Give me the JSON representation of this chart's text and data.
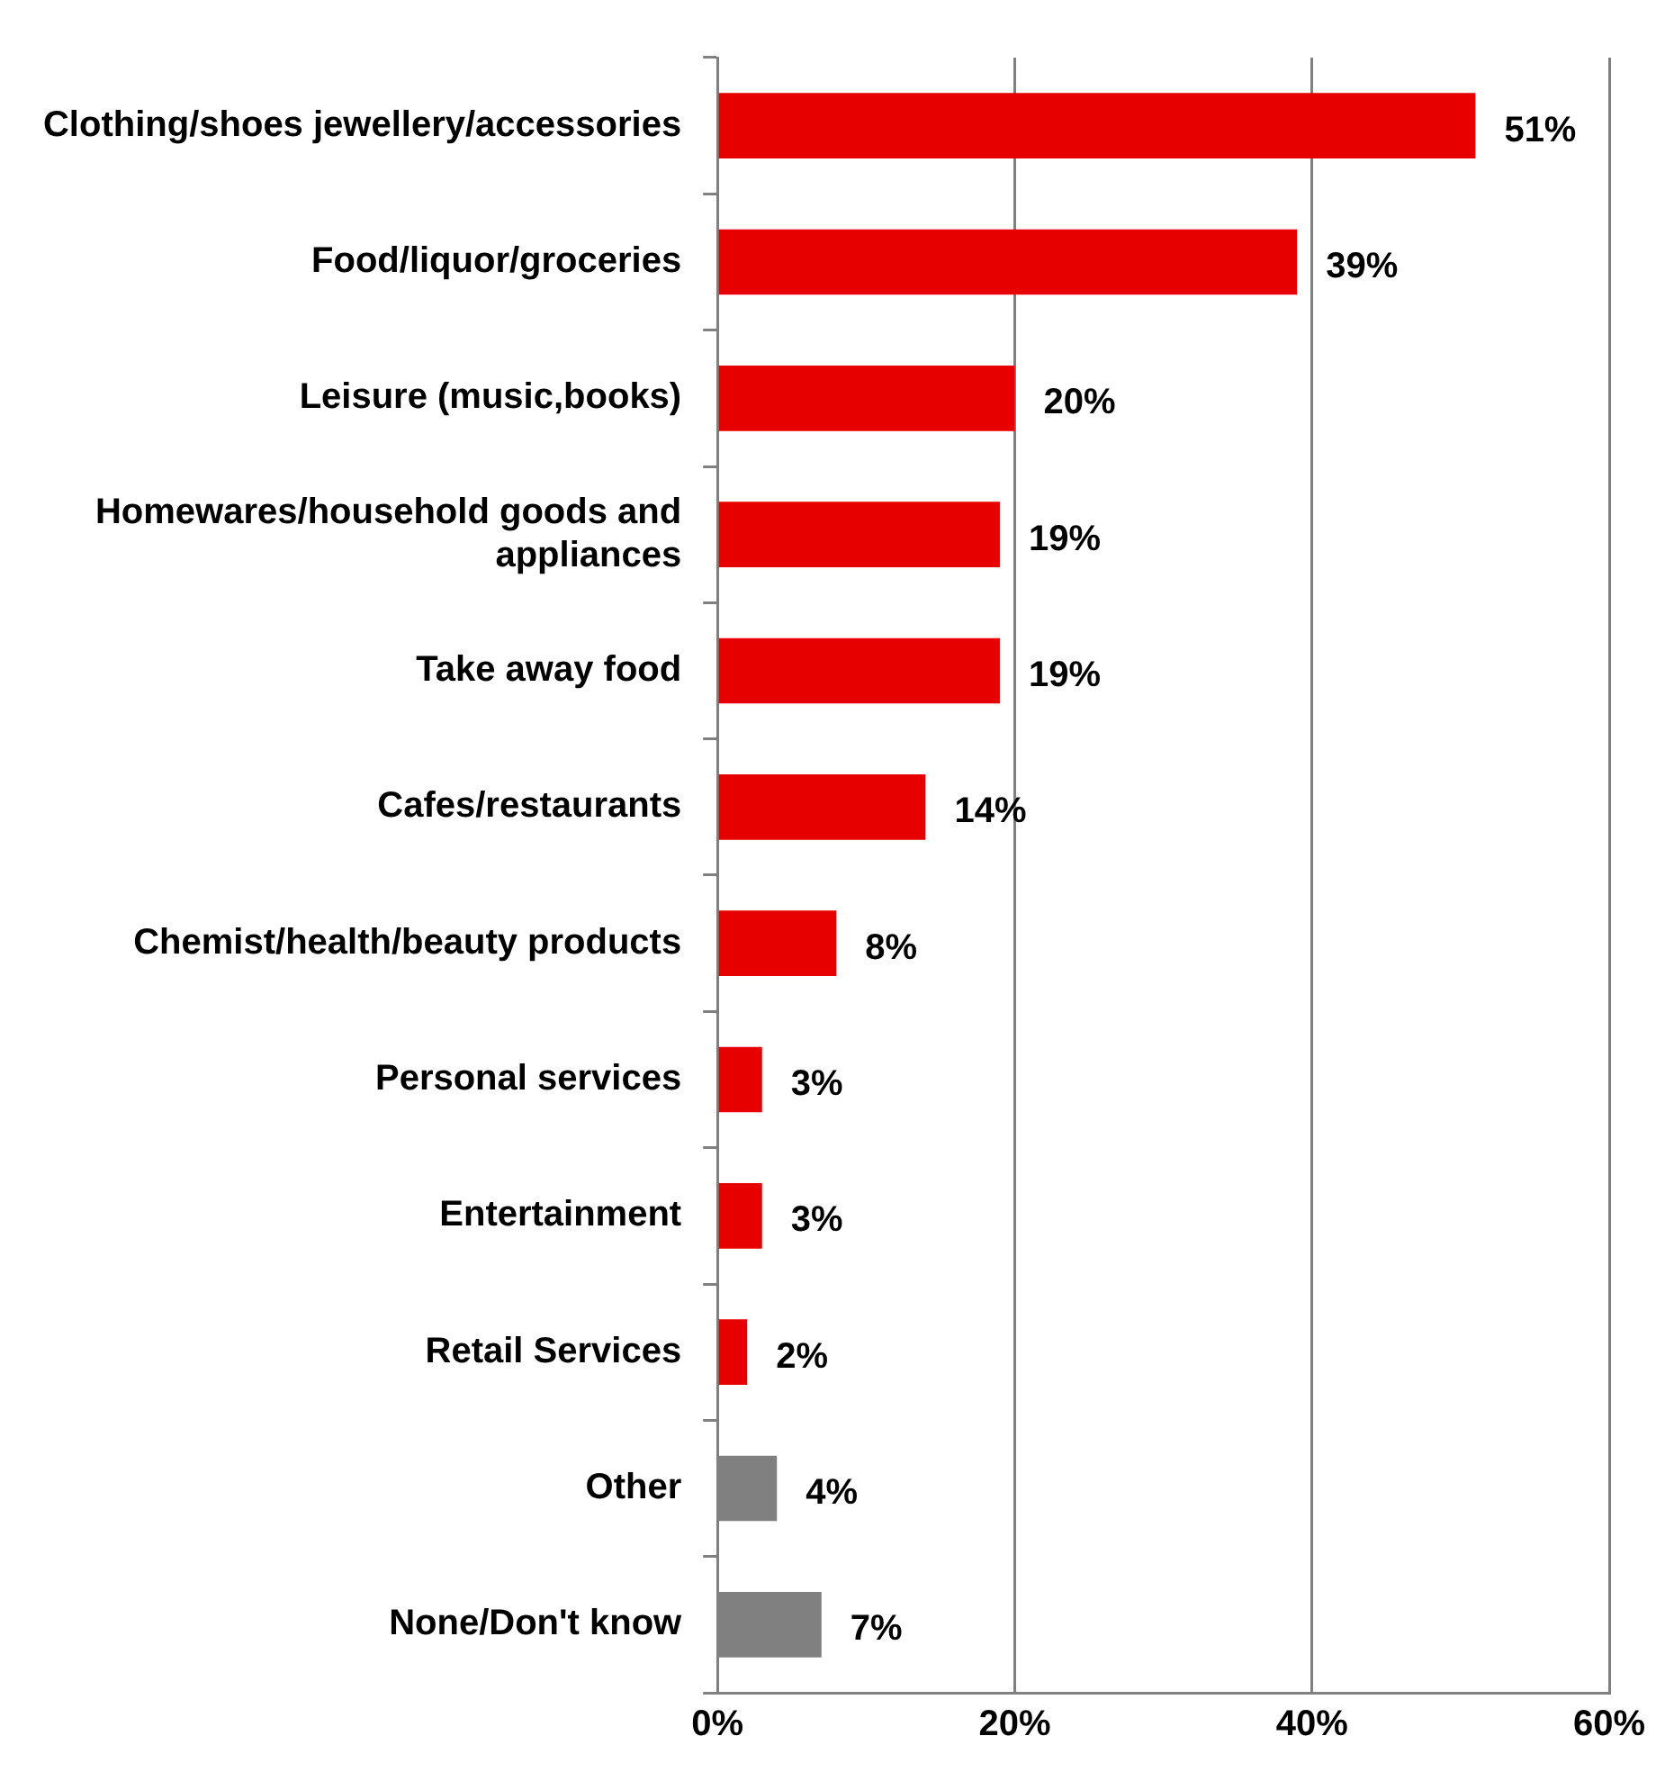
{
  "chart_data": {
    "type": "bar",
    "orientation": "horizontal",
    "categories": [
      "Clothing/shoes jewellery/accessories",
      "Food/liquor/groceries",
      "Leisure (music,books)",
      "Homewares/household goods and appliances",
      "Take away food",
      "Cafes/restaurants",
      "Chemist/health/beauty products",
      "Personal services",
      "Entertainment",
      "Retail Services",
      "Other",
      "None/Don't know"
    ],
    "values": [
      51,
      39,
      20,
      19,
      19,
      14,
      8,
      3,
      3,
      2,
      4,
      7
    ],
    "colors": [
      "#e60000",
      "#e60000",
      "#e60000",
      "#e60000",
      "#e60000",
      "#e60000",
      "#e60000",
      "#e60000",
      "#e60000",
      "#e60000",
      "#808080",
      "#808080"
    ],
    "value_labels": [
      "51%",
      "39%",
      "20%",
      "19%",
      "19%",
      "14%",
      "8%",
      "3%",
      "3%",
      "2%",
      "4%",
      "7%"
    ],
    "xlim": [
      0,
      60
    ],
    "xticks": [
      {
        "value": 0,
        "label": "0%"
      },
      {
        "value": 20,
        "label": "20%"
      },
      {
        "value": 40,
        "label": "40%"
      },
      {
        "value": 60,
        "label": "60%"
      }
    ],
    "grid": "x",
    "legend": false
  }
}
